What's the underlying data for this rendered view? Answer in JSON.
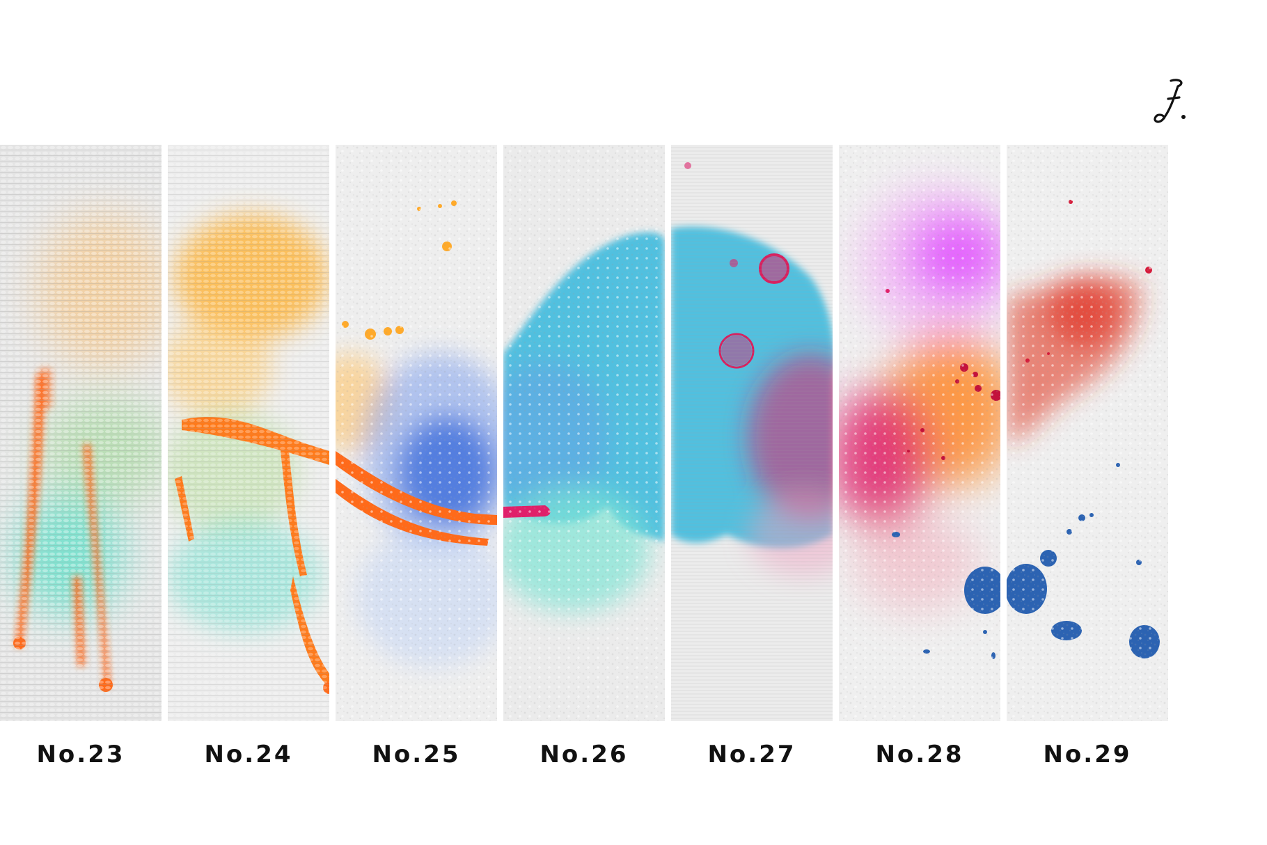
{
  "logo": {
    "icon": "script-f-monogram-icon",
    "glyph": "ℱ."
  },
  "swatches": [
    {
      "label": "No.23",
      "paper": "#e4e4e4"
    },
    {
      "label": "No.24",
      "paper": "#ececec"
    },
    {
      "label": "No.25",
      "paper": "#eeeeee"
    },
    {
      "label": "No.26",
      "paper": "#ebebeb"
    },
    {
      "label": "No.27",
      "paper": "#ececec"
    },
    {
      "label": "No.28",
      "paper": "#efefef"
    },
    {
      "label": "No.29",
      "paper": "#efefef"
    }
  ],
  "colors": {
    "orange": "#ff6a1a",
    "yellow": "#ffb43a",
    "teal": "#5fe0c8",
    "blue": "#2f63d9",
    "cyan": "#36b8dd",
    "magenta": "#e0206a",
    "violet": "#e254ff",
    "red": "#e23a2a",
    "ink-blue": "#2c63b2"
  }
}
